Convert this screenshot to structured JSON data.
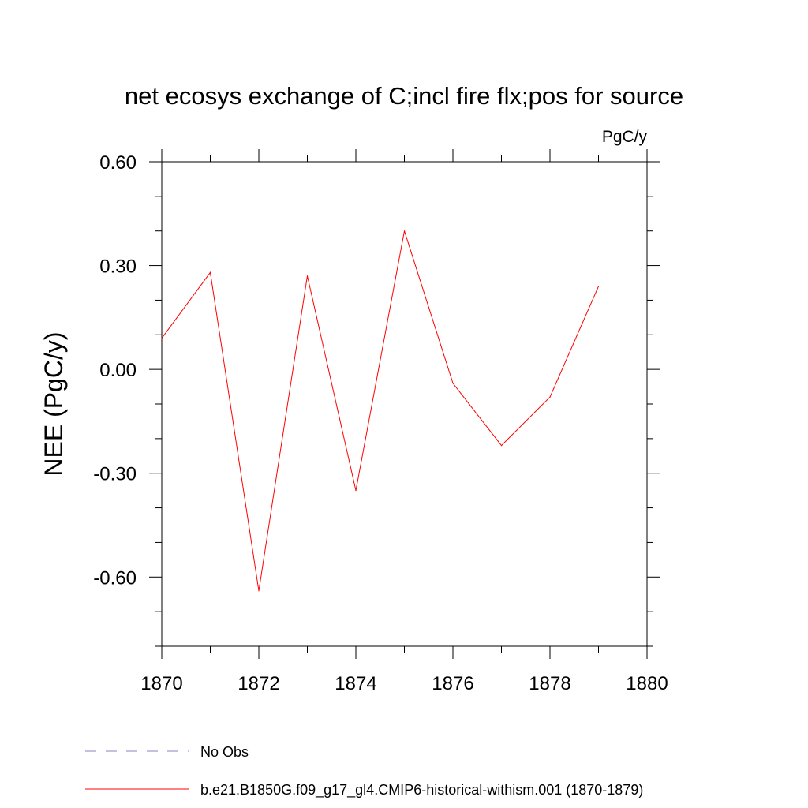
{
  "chart_data": {
    "type": "line",
    "title": "net ecosys exchange of C;incl fire flx;pos for source",
    "units": "PgC/y",
    "xlabel": "",
    "ylabel": "NEE  (PgC/y)",
    "xlim": [
      1870,
      1880
    ],
    "ylim": [
      -0.8,
      0.6
    ],
    "xticks": [
      1870,
      1872,
      1874,
      1876,
      1878,
      1880
    ],
    "yticks": [
      0.6,
      0.3,
      0.0,
      -0.3,
      -0.6
    ],
    "xtick_labels": [
      "1870",
      "1872",
      "1874",
      "1876",
      "1878",
      "1880"
    ],
    "ytick_labels": [
      "0.60",
      "0.30",
      "0.00",
      "-0.30",
      "-0.60"
    ],
    "x_minor_step": 1,
    "y_minor_step": 0.1,
    "grid": false,
    "legend_position": "bottom-left",
    "series": [
      {
        "name": "b.e21.B1850G.f09_g17_gl4.CMIP6-historical-withism.001 (1870-1879)",
        "color": "#ff0000",
        "style": "solid",
        "x": [
          1870,
          1871,
          1872,
          1873,
          1874,
          1875,
          1876,
          1877,
          1878,
          1879
        ],
        "y": [
          0.09,
          0.28,
          -0.64,
          0.27,
          -0.35,
          0.4,
          -0.04,
          -0.22,
          -0.08,
          0.24
        ]
      }
    ],
    "legend": [
      {
        "label": "No Obs",
        "color": "#8a80c0",
        "style": "dashed"
      },
      {
        "label": "b.e21.B1850G.f09_g17_gl4.CMIP6-historical-withism.001 (1870-1879)",
        "color": "#ff0000",
        "style": "solid"
      }
    ]
  }
}
